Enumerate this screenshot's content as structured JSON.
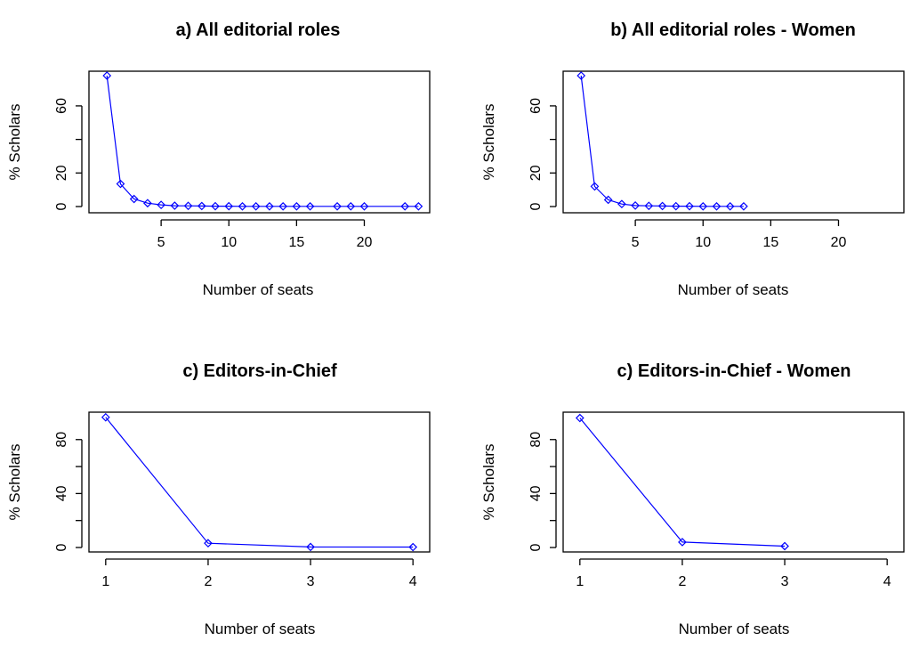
{
  "chart_data": [
    {
      "type": "line",
      "title": "a) All editorial roles",
      "xlabel": "Number of seats",
      "ylabel": "% Scholars",
      "xlim": [
        0,
        24.5
      ],
      "ylim": [
        0,
        78
      ],
      "xticks": [
        5,
        10,
        15,
        20
      ],
      "yticks": [
        0,
        20,
        60
      ],
      "ytick_marks": [
        0,
        20,
        40,
        60
      ],
      "x": [
        1,
        2,
        3,
        4,
        5,
        6,
        7,
        8,
        9,
        10,
        11,
        12,
        13,
        14,
        15,
        16,
        18,
        19,
        20,
        23,
        24
      ],
      "y": [
        78,
        13.5,
        4.5,
        2,
        1,
        0.5,
        0.4,
        0.3,
        0.2,
        0.2,
        0.1,
        0.1,
        0.1,
        0.1,
        0.1,
        0.1,
        0.1,
        0.1,
        0.1,
        0.1,
        0.1
      ],
      "color": "#0000ff"
    },
    {
      "type": "line",
      "title": "b) All editorial roles - Women",
      "xlabel": "Number of seats",
      "ylabel": "% Scholars",
      "xlim": [
        0,
        24.5
      ],
      "ylim": [
        0,
        78
      ],
      "xticks": [
        5,
        10,
        15,
        20
      ],
      "yticks": [
        0,
        20,
        60
      ],
      "ytick_marks": [
        0,
        20,
        40,
        60
      ],
      "x": [
        1,
        2,
        3,
        4,
        5,
        6,
        7,
        8,
        9,
        10,
        11,
        12,
        13
      ],
      "y": [
        78,
        12,
        4,
        1.5,
        0.6,
        0.4,
        0.3,
        0.2,
        0.2,
        0.1,
        0.1,
        0.1,
        0.1
      ],
      "color": "#0000ff"
    },
    {
      "type": "line",
      "title": "c) Editors-in-Chief",
      "xlabel": "Number of seats",
      "ylabel": "% Scholars",
      "xlim": [
        0.88,
        4.12
      ],
      "ylim": [
        0,
        97
      ],
      "xticks": [
        1,
        2,
        3,
        4
      ],
      "yticks": [
        0,
        40,
        80
      ],
      "ytick_marks": [
        0,
        20,
        40,
        60,
        80
      ],
      "x": [
        1,
        2,
        3,
        4
      ],
      "y": [
        96.5,
        3.2,
        0.4,
        0.3
      ],
      "color": "#0000ff"
    },
    {
      "type": "line",
      "title": "c) Editors-in-Chief - Women",
      "xlabel": "Number of seats",
      "ylabel": "% Scholars",
      "xlim": [
        0.88,
        4.12
      ],
      "ylim": [
        0,
        97
      ],
      "xticks": [
        1,
        2,
        3,
        4
      ],
      "yticks": [
        0,
        40,
        80
      ],
      "ytick_marks": [
        0,
        20,
        40,
        60,
        80
      ],
      "x": [
        1,
        2,
        3
      ],
      "y": [
        96,
        4,
        1
      ],
      "color": "#0000ff"
    }
  ]
}
